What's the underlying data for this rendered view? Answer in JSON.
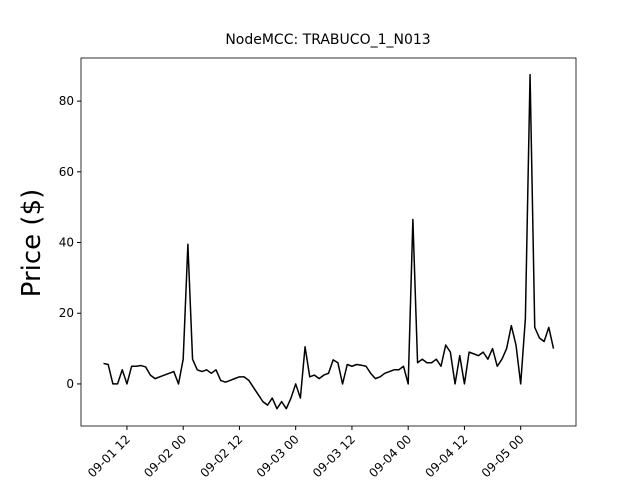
{
  "chart_data": {
    "type": "line",
    "title": "NodeMCC: TRABUCO_1_N013",
    "y_label": "Price ($)",
    "x": [
      "09-01 07",
      "09-01 08",
      "09-01 09",
      "09-01 10",
      "09-01 11",
      "09-01 12",
      "09-01 13",
      "09-01 14",
      "09-01 15",
      "09-01 16",
      "09-01 17",
      "09-01 18",
      "09-01 19",
      "09-01 20",
      "09-01 21",
      "09-01 22",
      "09-01 23",
      "09-02 00",
      "09-02 01",
      "09-02 02",
      "09-02 03",
      "09-02 04",
      "09-02 05",
      "09-02 06",
      "09-02 07",
      "09-02 08",
      "09-02 09",
      "09-02 10",
      "09-02 11",
      "09-02 12",
      "09-02 13",
      "09-02 14",
      "09-02 15",
      "09-02 16",
      "09-02 17",
      "09-02 18",
      "09-02 19",
      "09-02 20",
      "09-02 21",
      "09-02 22",
      "09-02 23",
      "09-03 00",
      "09-03 01",
      "09-03 02",
      "09-03 03",
      "09-03 04",
      "09-03 05",
      "09-03 06",
      "09-03 07",
      "09-03 08",
      "09-03 09",
      "09-03 10",
      "09-03 11",
      "09-03 12",
      "09-03 13",
      "09-03 14",
      "09-03 15",
      "09-03 16",
      "09-03 17",
      "09-03 18",
      "09-03 19",
      "09-03 20",
      "09-03 21",
      "09-03 22",
      "09-03 23",
      "09-04 00",
      "09-04 01",
      "09-04 02",
      "09-04 03",
      "09-04 04",
      "09-04 05",
      "09-04 06",
      "09-04 07",
      "09-04 08",
      "09-04 09",
      "09-04 10",
      "09-04 11",
      "09-04 12",
      "09-04 13",
      "09-04 14",
      "09-04 15",
      "09-04 16",
      "09-04 17",
      "09-04 18",
      "09-04 19",
      "09-04 20",
      "09-04 21",
      "09-04 22",
      "09-04 23",
      "09-05 00",
      "09-05 01",
      "09-05 02",
      "09-05 03",
      "09-05 04",
      "09-05 05",
      "09-05 06",
      "09-05 07"
    ],
    "series": [
      {
        "color": "#000000",
        "values": [
          5.8,
          5.5,
          0,
          0,
          4,
          0,
          5,
          5,
          5.2,
          4.8,
          2.5,
          1.5,
          2,
          2.5,
          3,
          3.5,
          0,
          7,
          39.5,
          7,
          4,
          3.5,
          4,
          3,
          4,
          1,
          0.5,
          1,
          1.5,
          2,
          2,
          1,
          -1,
          -3,
          -5,
          -6,
          -4,
          -7,
          -5,
          -7,
          -4,
          0,
          -4,
          10.5,
          2,
          2.5,
          1.5,
          2.5,
          3,
          6.8,
          6,
          0,
          5.5,
          5,
          5.5,
          5.3,
          5,
          3,
          1.5,
          2,
          3,
          3.5,
          4,
          4,
          5,
          0,
          46.5,
          6,
          7,
          6,
          6,
          7,
          5,
          11,
          9,
          0,
          8,
          0,
          9,
          8.5,
          8,
          9,
          7,
          10,
          5,
          7,
          10,
          16.5,
          11,
          0,
          18.5,
          87.5,
          16,
          13,
          12,
          16,
          10
        ]
      }
    ],
    "xlim": [
      "09-01 02:12",
      "09-05 11:48"
    ],
    "xticks": [
      "09-01 12",
      "09-02 00",
      "09-02 12",
      "09-03 00",
      "09-03 12",
      "09-04 00",
      "09-04 12",
      "09-05 00"
    ],
    "ylim": [
      -11.9,
      92.2
    ],
    "yticks": [
      0,
      20,
      40,
      60,
      80
    ]
  }
}
